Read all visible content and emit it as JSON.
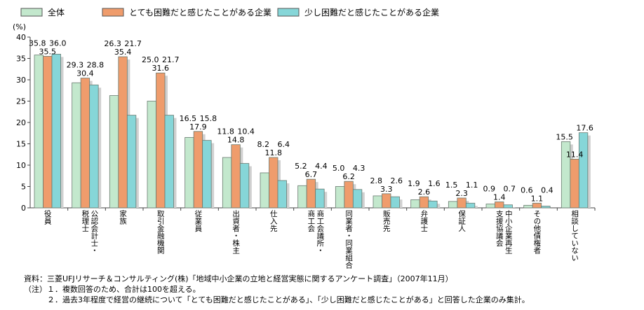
{
  "chart_data": {
    "type": "bar",
    "unit_label": "(%)",
    "ylim": [
      0,
      40
    ],
    "yticks": [
      0,
      5,
      10,
      15,
      20,
      25,
      30,
      35,
      40
    ],
    "grid": false,
    "legend_position": "top",
    "categories": [
      "役員",
      "公認会計士・\n税理士",
      "家族",
      "取引金融機関",
      "従業員",
      "出資者・株主",
      "仕入先",
      "商工会議所・\n商工会",
      "同業者・同業組合",
      "販売先",
      "弁護士",
      "保証人",
      "中小企業再生\n支援協議会",
      "その他債権者",
      "相談していない"
    ],
    "series": [
      {
        "name": "全体",
        "color": "#c3e8cd",
        "values": [
          35.8,
          29.3,
          26.3,
          25.0,
          16.5,
          11.8,
          8.2,
          5.2,
          5.0,
          2.8,
          1.9,
          1.5,
          0.9,
          0.6,
          15.5
        ]
      },
      {
        "name": "とても困難だと感じたことがある企業",
        "color": "#ef9c6c",
        "values": [
          35.5,
          30.4,
          35.4,
          31.6,
          17.9,
          14.8,
          11.8,
          6.7,
          6.2,
          3.3,
          2.6,
          2.3,
          1.4,
          1.1,
          11.4
        ]
      },
      {
        "name": "少し困難だと感じたことがある企業",
        "color": "#86d6d8",
        "values": [
          36.0,
          28.8,
          21.7,
          21.7,
          15.8,
          10.4,
          6.4,
          4.4,
          4.3,
          2.6,
          1.6,
          1.1,
          0.7,
          0.4,
          17.6
        ]
      }
    ]
  },
  "notes": [
    "資料：三菱UFJリサーチ＆コンサルティング(株)「地域中小企業の立地と経営実態に関するアンケート調査」（2007年11月）",
    "（注）１．複数回答のため、合計は100を超える。",
    "　　　２．過去3年程度で経営の継続について「とても困難だと感じたことがある」、「少し困難だと感じたことがある」と回答した企業のみ集計。"
  ]
}
